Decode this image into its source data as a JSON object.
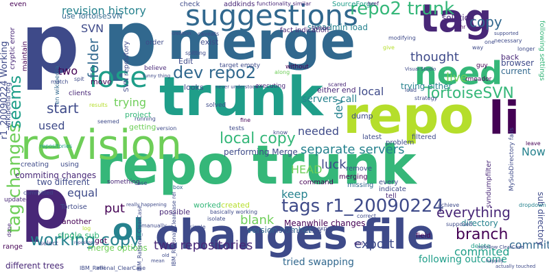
{
  "colors": {
    "background": "#ffffff",
    "palette": [
      "#440154",
      "#482777",
      "#3e4a89",
      "#31688e",
      "#26828e",
      "#1f9e89",
      "#35b779",
      "#6ece58",
      "#b5de2b",
      "#fde725"
    ]
  },
  "words": [
    {
      "text": "repo trunk",
      "color": "#35b779"
    },
    {
      "text": "changes file",
      "color": "#3e4a89"
    },
    {
      "text": "merge",
      "color": "#31688e"
    },
    {
      "text": "repo",
      "color": "#b5de2b"
    },
    {
      "text": "trunk",
      "color": "#1f9e89"
    },
    {
      "text": "p",
      "color": "#3e4a89"
    },
    {
      "text": "p",
      "color": "#31688e"
    },
    {
      "text": "p",
      "color": "#482777"
    },
    {
      "text": "revision",
      "color": "#6ece58"
    },
    {
      "text": "tag",
      "color": "#482777"
    },
    {
      "text": "li",
      "color": "#440154"
    },
    {
      "text": "suggestions",
      "color": "#31688e"
    },
    {
      "text": "need",
      "color": "#35b779"
    },
    {
      "text": "lose",
      "color": "#1f9e89"
    },
    {
      "text": "ol",
      "color": "#26828e"
    },
    {
      "text": "repo2 trunk",
      "color": "#35b779"
    },
    {
      "text": "tags r1_20090224",
      "color": "#3e4a89"
    },
    {
      "text": "tag changes",
      "color": "#6ece58"
    },
    {
      "text": "dev repo2",
      "color": "#31688e"
    },
    {
      "text": "working copy",
      "color": "#26828e"
    },
    {
      "text": "local copy",
      "color": "#35b779"
    },
    {
      "text": "branch",
      "color": "#440154"
    },
    {
      "text": "seems",
      "color": "#1f9e89"
    },
    {
      "text": "TortoiseSVN",
      "color": "#35b779"
    },
    {
      "text": "revision history",
      "color": "#26828e"
    },
    {
      "text": "separate servers",
      "color": "#26828e"
    },
    {
      "text": "copy",
      "color": "#31688e"
    },
    {
      "text": "thought",
      "color": "#3e4a89"
    },
    {
      "text": "live",
      "color": "#6ece58"
    },
    {
      "text": "start",
      "color": "#3e4a89"
    },
    {
      "text": "folder",
      "color": "#31688e"
    },
    {
      "text": "everything",
      "color": "#482777"
    },
    {
      "text": "export",
      "color": "#3e4a89"
    },
    {
      "text": "two repositories",
      "color": "#482777"
    },
    {
      "text": "commited",
      "color": "#1f9e89"
    },
    {
      "text": "commit",
      "color": "#31688e"
    },
    {
      "text": "blank",
      "color": "#6ece58"
    },
    {
      "text": "luck",
      "color": "#3e4a89"
    },
    {
      "text": "Now",
      "color": "#26828e"
    },
    {
      "text": "keep",
      "color": "#26828e"
    },
    {
      "text": "equal",
      "color": "#3e4a89"
    },
    {
      "text": "put",
      "color": "#440154"
    },
    {
      "text": "needed",
      "color": "#3e4a89"
    },
    {
      "text": "used",
      "color": "#3e4a89"
    },
    {
      "text": "dev",
      "color": "#26828e"
    },
    {
      "text": "trying",
      "color": "#6ece58"
    },
    {
      "text": "local",
      "color": "#3e4a89"
    },
    {
      "text": "HEAD",
      "color": "#6ece58"
    },
    {
      "text": "SVN",
      "color": "#3e4a89"
    },
    {
      "text": "two",
      "color": "#440154"
    },
    {
      "text": "Meanwhile changes",
      "color": "#440154"
    },
    {
      "text": "servers call",
      "color": "#26828e"
    },
    {
      "text": "tried swapping",
      "color": "#31688e"
    },
    {
      "text": "different trees",
      "color": "#482777"
    },
    {
      "text": "two different",
      "color": "#3e4a89"
    },
    {
      "text": "commiting changes",
      "color": "#482777"
    },
    {
      "text": "performing Merge",
      "color": "#3e4a89"
    },
    {
      "text": "following outcome",
      "color": "#1f9e89"
    },
    {
      "text": "version number",
      "color": "#31688e"
    },
    {
      "text": "directory",
      "color": "#26828e"
    },
    {
      "text": "sub directory",
      "color": "#3e4a89"
    },
    {
      "text": "r1_20090224 Working",
      "color": "#3e4a89"
    },
    {
      "text": "merge options",
      "color": "#6ece58"
    },
    {
      "text": "single sub",
      "color": "#35b779"
    },
    {
      "text": "use TortoiseSVN",
      "color": "#31688e"
    },
    {
      "text": "solution",
      "color": "#482777"
    },
    {
      "text": "browser",
      "color": "#3e4a89"
    },
    {
      "text": "current",
      "color": "#31688e"
    },
    {
      "text": "back",
      "color": "#482777"
    },
    {
      "text": "worked",
      "color": "#35b779"
    },
    {
      "text": "created",
      "color": "#b5de2b"
    },
    {
      "text": "possible",
      "color": "#482777"
    },
    {
      "text": "another",
      "color": "#440154"
    },
    {
      "text": "Edit",
      "color": "#3e4a89"
    },
    {
      "text": "exist",
      "color": "#3e4a89"
    },
    {
      "text": "move",
      "color": "#440154"
    },
    {
      "text": "check",
      "color": "#3e4a89"
    },
    {
      "text": "even",
      "color": "#440154"
    },
    {
      "text": "svnadmin load",
      "color": "#26828e"
    },
    {
      "text": "trying either",
      "color": "#26828e"
    },
    {
      "text": "either end",
      "color": "#482777"
    },
    {
      "text": "looks",
      "color": "#3e4a89"
    },
    {
      "text": "project",
      "color": "#35b779"
    },
    {
      "text": "getting",
      "color": "#6ece58"
    },
    {
      "text": "dump",
      "color": "#3e4a89"
    },
    {
      "text": "filtered",
      "color": "#3e4a89"
    },
    {
      "text": "wikipedia org",
      "color": "#3e4a89"
    },
    {
      "text": "cryptic error",
      "color": "#482777"
    },
    {
      "text": "maintain",
      "color": "#440154"
    },
    {
      "text": "SVN repository",
      "color": "#3e4a89"
    },
    {
      "text": "en wikipedia",
      "color": "#31688e"
    },
    {
      "text": "clients",
      "color": "#482777"
    },
    {
      "text": "order",
      "color": "#3e4a89"
    },
    {
      "text": "fact indication",
      "color": "#482777"
    },
    {
      "text": "addkinds",
      "color": "#482777"
    },
    {
      "text": "functionality similar",
      "color": "#482777"
    },
    {
      "text": "SourceForge",
      "color": "#1f9e89"
    },
    {
      "text": "svndumpfilter",
      "color": "#482777"
    },
    {
      "text": "MySubDirectory fails",
      "color": "#3e4a89"
    },
    {
      "text": "IBM_Rational_ClearCase",
      "color": "#3e4a89"
    },
    {
      "text": "IBM_Rational_ClearCase rel",
      "color": "#3e4a89"
    },
    {
      "text": "IBM_Rational_ClearCase",
      "color": "#3e4a89"
    },
    {
      "text": "something",
      "color": "#482777"
    },
    {
      "text": "tests",
      "color": "#3e4a89"
    },
    {
      "text": "latest",
      "color": "#3e4a89"
    },
    {
      "text": "problem",
      "color": "#3e4a89"
    },
    {
      "text": "command",
      "color": "#440154"
    },
    {
      "text": "merging",
      "color": "#440154"
    },
    {
      "text": "remove",
      "color": "#3e4a89"
    },
    {
      "text": "missing",
      "color": "#31688e"
    },
    {
      "text": "every",
      "color": "#3e4a89"
    },
    {
      "text": "indicate",
      "color": "#3e4a89"
    },
    {
      "text": "tell",
      "color": "#482777"
    },
    {
      "text": "really happening",
      "color": "#3e4a89"
    },
    {
      "text": "Tortoise",
      "color": "#3e4a89"
    },
    {
      "text": "repositories",
      "color": "#1f9e89"
    },
    {
      "text": "updated",
      "color": "#482777"
    },
    {
      "text": "committed",
      "color": "#3e4a89"
    },
    {
      "text": "creating",
      "color": "#3e4a89"
    },
    {
      "text": "using",
      "color": "#3e4a89"
    },
    {
      "text": "range",
      "color": "#440154"
    },
    {
      "text": "select",
      "color": "#3e4a89"
    },
    {
      "text": "done",
      "color": "#482777"
    },
    {
      "text": "got",
      "color": "#440154"
    },
    {
      "text": "provide",
      "color": "#3e4a89"
    },
    {
      "text": "confused",
      "color": "#3e4a89"
    },
    {
      "text": "correct",
      "color": "#3e4a89"
    },
    {
      "text": "achieve",
      "color": "#3e4a89"
    },
    {
      "text": "expected",
      "color": "#3e4a89"
    },
    {
      "text": "supposed",
      "color": "#3e4a89"
    },
    {
      "text": "field",
      "color": "#440154"
    },
    {
      "text": "delete",
      "color": "#1f9e89"
    },
    {
      "text": "leave",
      "color": "#440154"
    },
    {
      "text": "dropdown",
      "color": "#26828e"
    },
    {
      "text": "em",
      "color": "#482777"
    },
    {
      "text": "href",
      "color": "#482777"
    },
    {
      "text": "hr",
      "color": "#440154"
    },
    {
      "text": "October",
      "color": "#482777"
    },
    {
      "text": "modifying",
      "color": "#3e4a89"
    },
    {
      "text": "caveats",
      "color": "#3e4a89"
    },
    {
      "text": "spitting",
      "color": "#3e4a89"
    },
    {
      "text": "target empty",
      "color": "#3e4a89"
    },
    {
      "text": "never understood",
      "color": "#3e4a89"
    },
    {
      "text": "executing",
      "color": "#482777"
    },
    {
      "text": "solved",
      "color": "#3e4a89"
    },
    {
      "text": "without",
      "color": "#440154"
    },
    {
      "text": "scared",
      "color": "#482777"
    },
    {
      "text": "believe",
      "color": "#482777"
    },
    {
      "text": "funny thing",
      "color": "#3e4a89"
    },
    {
      "text": "running",
      "color": "#3e4a89"
    },
    {
      "text": "seemed",
      "color": "#3e4a89"
    },
    {
      "text": "version",
      "color": "#3e4a89"
    },
    {
      "text": "know",
      "color": "#3e4a89"
    },
    {
      "text": "guy",
      "color": "#440154"
    },
    {
      "text": "rmeador",
      "color": "#440154"
    },
    {
      "text": "Visual Studio",
      "color": "#3e4a89"
    },
    {
      "text": "strategy",
      "color": "#3e4a89"
    },
    {
      "text": "manually",
      "color": "#3e4a89"
    },
    {
      "text": "single",
      "color": "#3e4a89"
    },
    {
      "text": "isolate",
      "color": "#3e4a89"
    },
    {
      "text": "basically working",
      "color": "#3e4a89"
    },
    {
      "text": "case",
      "color": "#3e4a89"
    },
    {
      "text": "box",
      "color": "#31688e"
    },
    {
      "text": "mean",
      "color": "#3e4a89"
    },
    {
      "text": "wiki",
      "color": "#3e4a89"
    },
    {
      "text": "old",
      "color": "#3e4a89"
    },
    {
      "text": "way",
      "color": "#3e4a89"
    },
    {
      "text": "one",
      "color": "#3e4a89"
    },
    {
      "text": "longer",
      "color": "#3e4a89"
    },
    {
      "text": "necessary",
      "color": "#3e4a89"
    },
    {
      "text": "supported",
      "color": "#3e4a89"
    },
    {
      "text": "following settings",
      "color": "#35b779"
    },
    {
      "text": "nofollow ClearCase",
      "color": "#3e4a89"
    },
    {
      "text": "happily",
      "color": "#3e4a89"
    },
    {
      "text": "actually touched",
      "color": "#3e4a89"
    },
    {
      "text": "repository",
      "color": "#3e4a89"
    },
    {
      "text": "log",
      "color": "#b5de2b"
    },
    {
      "text": "results",
      "color": "#b5de2b"
    },
    {
      "text": "creation",
      "color": "#3e4a89"
    },
    {
      "text": "along",
      "color": "#6ece58"
    },
    {
      "text": "give",
      "color": "#b5de2b"
    },
    {
      "text": "spit",
      "color": "#3e4a89"
    },
    {
      "text": "match",
      "color": "#3e4a89"
    },
    {
      "text": "load",
      "color": "#3e4a89"
    },
    {
      "text": "fine",
      "color": "#440154"
    }
  ]
}
